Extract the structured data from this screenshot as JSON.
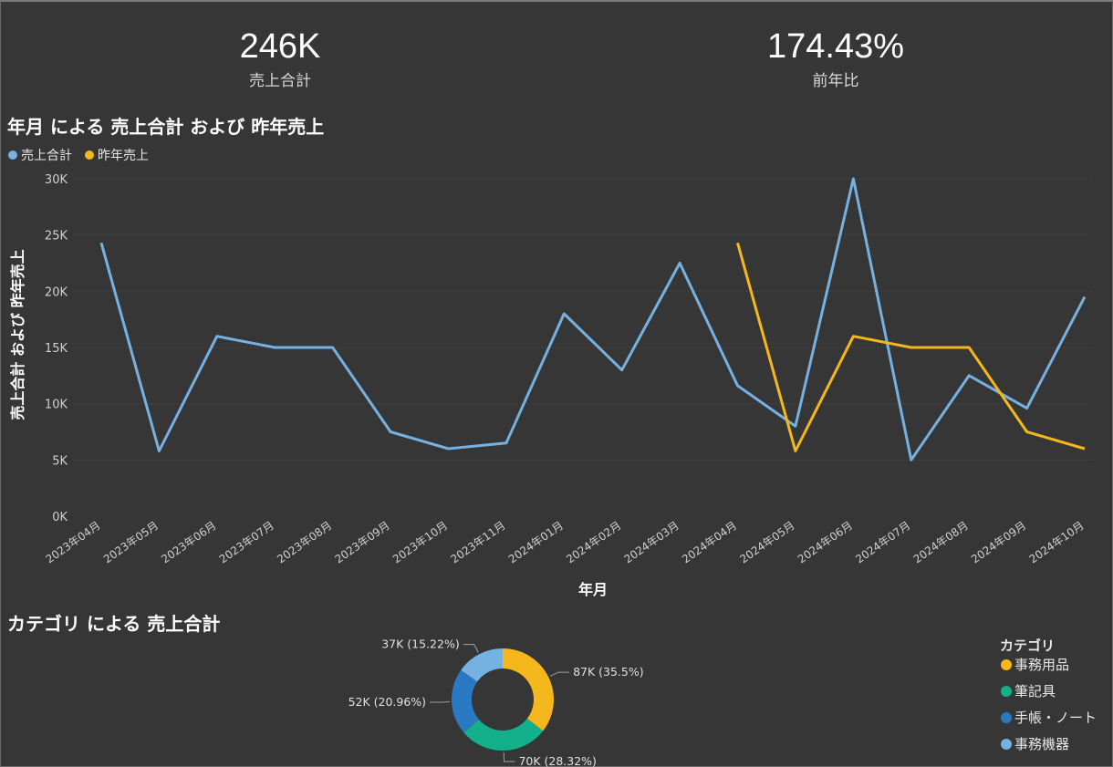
{
  "kpis": {
    "sales_total": {
      "value": "246K",
      "label": "売上合計"
    },
    "yoy": {
      "value": "174.43%",
      "label": "前年比"
    }
  },
  "chart_data": [
    {
      "type": "line",
      "title": "年月 による 売上合計 および 昨年売上",
      "xlabel": "年月",
      "ylabel": "売上合計 および 昨年売上",
      "categories": [
        "2023年04月",
        "2023年05月",
        "2023年06月",
        "2023年07月",
        "2023年08月",
        "2023年09月",
        "2023年10月",
        "2023年11月",
        "2024年01月",
        "2024年02月",
        "2024年03月",
        "2024年04月",
        "2024年05月",
        "2024年06月",
        "2024年07月",
        "2024年08月",
        "2024年09月",
        "2024年10月"
      ],
      "series": [
        {
          "name": "売上合計",
          "color": "#75b1e1",
          "values": [
            24300,
            5800,
            16000,
            15000,
            15000,
            7500,
            6000,
            6500,
            18000,
            13000,
            22500,
            11600,
            8000,
            30000,
            5000,
            12500,
            9600,
            19500
          ]
        },
        {
          "name": "昨年売上",
          "color": "#f4b71c",
          "values": [
            null,
            null,
            null,
            null,
            null,
            null,
            null,
            null,
            null,
            null,
            null,
            24300,
            5800,
            16000,
            15000,
            15000,
            7500,
            6000
          ]
        }
      ],
      "y_ticks": [
        "0K",
        "5K",
        "10K",
        "15K",
        "20K",
        "25K",
        "30K"
      ],
      "ylim": [
        0,
        30000
      ],
      "grid": true,
      "legend": "top-left"
    },
    {
      "type": "pie",
      "title": "カテゴリ による 売上合計",
      "legend_title": "カテゴリ",
      "legend": "right",
      "slices": [
        {
          "name": "事務用品",
          "value": 87,
          "percent": 35.5,
          "label": "87K (35.5%)",
          "color": "#f4b71c"
        },
        {
          "name": "筆記具",
          "value": 70,
          "percent": 28.32,
          "label": "70K (28.32%)",
          "color": "#14b08c"
        },
        {
          "name": "手帳・ノート",
          "value": 52,
          "percent": 20.96,
          "label": "52K (20.96%)",
          "color": "#2a79c2"
        },
        {
          "name": "事務機器",
          "value": 37,
          "percent": 15.22,
          "label": "37K (15.22%)",
          "color": "#75b1e1"
        }
      ]
    }
  ]
}
